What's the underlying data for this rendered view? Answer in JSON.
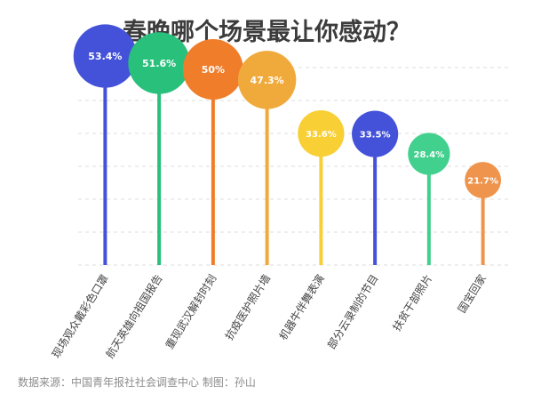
{
  "chart_data": {
    "type": "lollipop",
    "title": "春晚哪个场景最让你感动？",
    "categories": [
      "现场观众戴彩色口罩",
      "航天英雄向祖国报告",
      "重现武汉解封时刻",
      "抗疫医护照片墙",
      "机器牛伴舞表演",
      "部分云录制的节目",
      "扶贫干部照片",
      "国宝回家"
    ],
    "values": [
      53.4,
      51.6,
      50,
      47.3,
      33.6,
      33.5,
      28.4,
      21.7
    ],
    "value_labels": [
      "53.4%",
      "51.6%",
      "50%",
      "47.3%",
      "33.6%",
      "33.5%",
      "28.4%",
      "21.7%"
    ],
    "colors": [
      "#4352d9",
      "#29c07c",
      "#ef7d2a",
      "#f0aa3c",
      "#f8cf34",
      "#4352d9",
      "#42d08e",
      "#ef944c"
    ],
    "ylim": [
      0,
      60
    ],
    "grid": true,
    "source": "数据来源：中国青年报社社会调查中心 制图：孙山"
  }
}
